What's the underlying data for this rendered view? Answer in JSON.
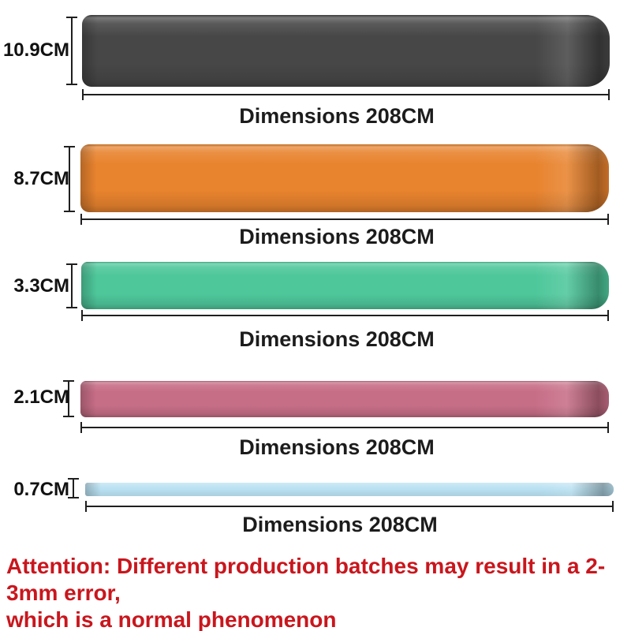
{
  "bands": [
    {
      "id": "black",
      "height_label": "10.9CM",
      "length_label": "Dimensions 208CM",
      "color": "#474747"
    },
    {
      "id": "orange",
      "height_label": "8.7CM",
      "length_label": "Dimensions 208CM",
      "color": "#E8832E"
    },
    {
      "id": "green",
      "height_label": "3.3CM",
      "length_label": "Dimensions 208CM",
      "color": "#4EC79B"
    },
    {
      "id": "pink",
      "height_label": "2.1CM",
      "length_label": "Dimensions 208CM",
      "color": "#C76E87"
    },
    {
      "id": "blue",
      "height_label": "0.7CM",
      "length_label": "Dimensions 208CM",
      "color": "#B9E1F2"
    }
  ],
  "attention": {
    "line1": "Attention: Different production batches may result in a 2-3mm error,",
    "line2": "which is a normal phenomenon",
    "color": "#C9161D"
  },
  "measure_line_color": "#1F1F1F"
}
